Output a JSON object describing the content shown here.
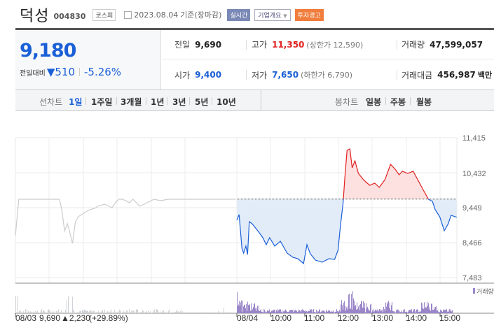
{
  "header": {
    "name": "덕성",
    "code": "004830",
    "market": "코스피",
    "date": "2023.08.04",
    "basis": "기준(장마감)",
    "realtime_label": "실시간",
    "company_label": "기업개요",
    "warning_label": "투자경고"
  },
  "quote": {
    "price": "9,180",
    "change_label": "전일대비",
    "change_dir": "down",
    "change": "510",
    "change_pct": "-5.26%"
  },
  "stats": {
    "prev_close": {
      "label": "전일",
      "value": "9,690"
    },
    "high": {
      "label": "고가",
      "value": "11,350",
      "limit_label": "(상한가 12,590)"
    },
    "volume": {
      "label": "거래량",
      "value": "47,599,057"
    },
    "open": {
      "label": "시가",
      "value": "9,400"
    },
    "low": {
      "label": "저가",
      "value": "7,650",
      "limit_label": "(하한가 6,790)"
    },
    "amount": {
      "label": "거래대금",
      "value": "456,987",
      "unit": "백만"
    }
  },
  "tabs": {
    "line_label": "선차트",
    "line": [
      "1일",
      "1주일",
      "3개월",
      "1년",
      "3년",
      "5년",
      "10년"
    ],
    "active": "1일",
    "candle_label": "봉차트",
    "candle": [
      "일봉",
      "주봉",
      "월봉"
    ]
  },
  "colors": {
    "up": "#e0201f",
    "down": "#1a5fd6",
    "prev_day": "#cccccc",
    "volume": "#9b86c9"
  },
  "chart_data": {
    "type": "line",
    "y_ticks": [
      "11,415",
      "10,432",
      "9,449",
      "8,466",
      "7,483"
    ],
    "ylim": [
      7483,
      11415
    ],
    "reference_price": 9690,
    "x_labels": [
      "08/04",
      "10:00",
      "11:00",
      "12:00",
      "13:00",
      "14:00",
      "15:00"
    ],
    "prev_day_label": {
      "date": "08/03",
      "close": "9,690",
      "change": "▲2,230",
      "pct": "(+29.89%)"
    },
    "volume_legend": "거래량",
    "prev_day_series": [
      [
        "09:00",
        8663
      ],
      [
        "09:06",
        9685
      ],
      [
        "10:18",
        9685
      ],
      [
        "10:22",
        9390
      ],
      [
        "10:27",
        8800
      ],
      [
        "10:32",
        8997
      ],
      [
        "10:37",
        8702
      ],
      [
        "10:41",
        8446
      ],
      [
        "10:46",
        9036
      ],
      [
        "10:51",
        9193
      ],
      [
        "11:01",
        9292
      ],
      [
        "11:11",
        9390
      ],
      [
        "11:20",
        9429
      ],
      [
        "11:26",
        9488
      ],
      [
        "11:38",
        9547
      ],
      [
        "11:51",
        9449
      ],
      [
        "11:57",
        9587
      ],
      [
        "12:03",
        9685
      ],
      [
        "12:09",
        9685
      ],
      [
        "12:15",
        9646
      ],
      [
        "12:22",
        9587
      ],
      [
        "12:28",
        9685
      ],
      [
        "12:34",
        9587
      ],
      [
        "12:40",
        9488
      ],
      [
        "12:53",
        9587
      ],
      [
        "13:05",
        9685
      ],
      [
        "13:17",
        9646
      ],
      [
        "13:30",
        9685
      ],
      [
        "15:30",
        9685
      ]
    ],
    "series": [
      [
        "09:00",
        9095
      ],
      [
        "09:04",
        9253
      ],
      [
        "09:09",
        8309
      ],
      [
        "09:12",
        8171
      ],
      [
        "09:16",
        8368
      ],
      [
        "09:19",
        8132
      ],
      [
        "09:22",
        9056
      ],
      [
        "09:27",
        8997
      ],
      [
        "09:37",
        8800
      ],
      [
        "09:46",
        8604
      ],
      [
        "09:52",
        8407
      ],
      [
        "09:58",
        8604
      ],
      [
        "10:07",
        8368
      ],
      [
        "10:17",
        8505
      ],
      [
        "10:29",
        8171
      ],
      [
        "10:39",
        8053
      ],
      [
        "10:48",
        8014
      ],
      [
        "10:58",
        7876
      ],
      [
        "11:04",
        8407
      ],
      [
        "11:10",
        8152
      ],
      [
        "11:19",
        7974
      ],
      [
        "11:31",
        7915
      ],
      [
        "11:43",
        8014
      ],
      [
        "11:53",
        7994
      ],
      [
        "11:59",
        8250
      ],
      [
        "12:03",
        8899
      ],
      [
        "12:08",
        9587
      ],
      [
        "12:11",
        10275
      ],
      [
        "12:15",
        11061
      ],
      [
        "12:20",
        11100
      ],
      [
        "12:24",
        10570
      ],
      [
        "12:29",
        10766
      ],
      [
        "12:35",
        10412
      ],
      [
        "12:45",
        10216
      ],
      [
        "12:55",
        10078
      ],
      [
        "13:04",
        10138
      ],
      [
        "13:12",
        10019
      ],
      [
        "13:22",
        10235
      ],
      [
        "13:32",
        10668
      ],
      [
        "13:40",
        10530
      ],
      [
        "13:47",
        10373
      ],
      [
        "13:53",
        10471
      ],
      [
        "14:02",
        10412
      ],
      [
        "14:12",
        10471
      ],
      [
        "14:22",
        10176
      ],
      [
        "14:30",
        9941
      ],
      [
        "14:39",
        9685
      ],
      [
        "14:46",
        9626
      ],
      [
        "14:51",
        9390
      ],
      [
        "14:59",
        9193
      ],
      [
        "15:07",
        8800
      ],
      [
        "15:14",
        8997
      ],
      [
        "15:19",
        9233
      ],
      [
        "15:29",
        9180
      ]
    ]
  }
}
